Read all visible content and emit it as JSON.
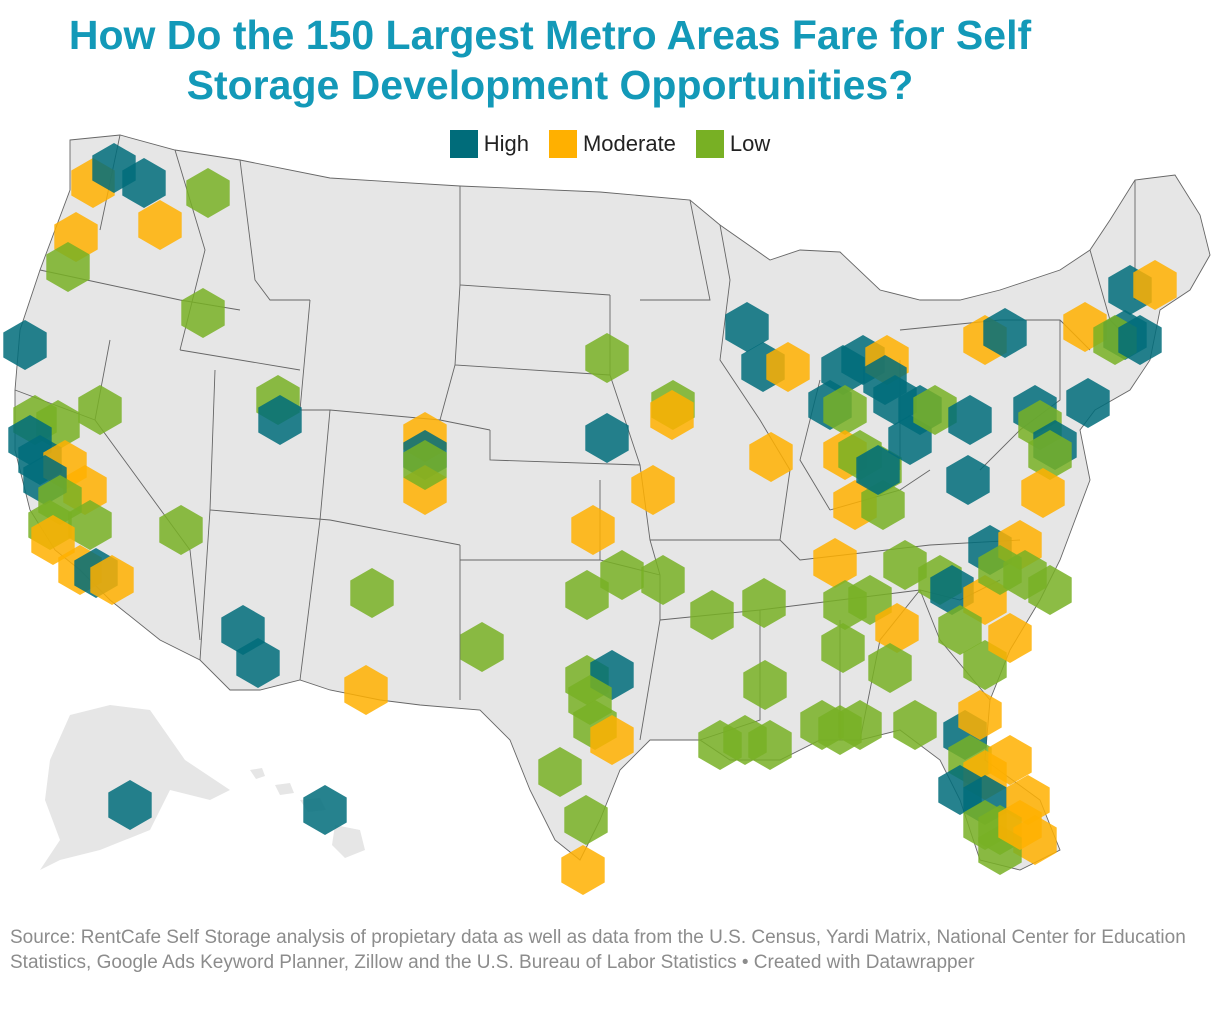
{
  "title_line1": "How Do the 150 Largest Metro Areas Fare for Self",
  "title_line2": "Storage Development Opportunities?",
  "legend": [
    {
      "label": "High",
      "color": "#006c7a"
    },
    {
      "label": "Moderate",
      "color": "#ffb000"
    },
    {
      "label": "Low",
      "color": "#78b024"
    }
  ],
  "source": "Source: RentCafe Self Storage analysis of propietary data as well as data from the U.S. Census, Yardi Matrix, National Center for Education Statistics, Google Ads Keyword Planner, Zillow and the U.S. Bureau of Labor Statistics • Created with Datawrapper",
  "colors": {
    "land": "#e6e6e6",
    "borders": "#666666",
    "hex_opacity": 0.85
  }
}
